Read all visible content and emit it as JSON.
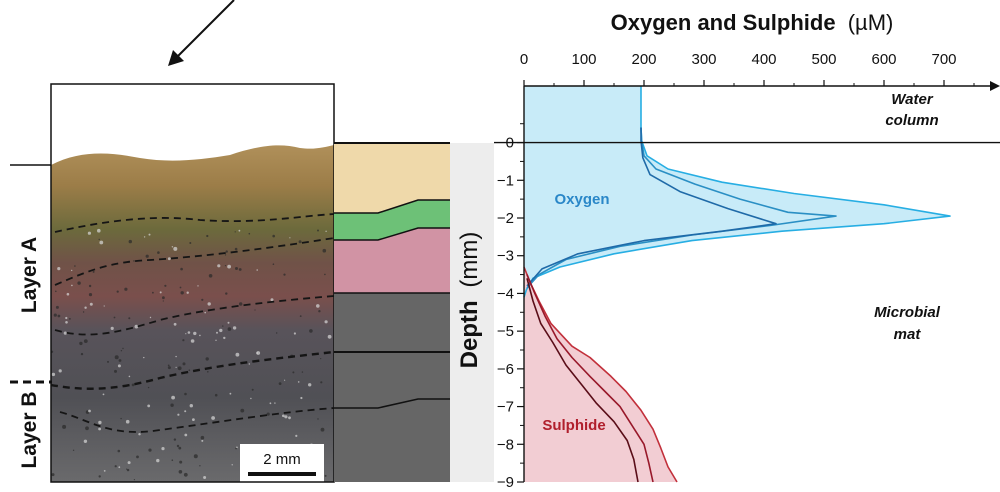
{
  "chart_data": {
    "type": "line",
    "title_bold": "Oxygen and Sulphide",
    "title_unit": "(µM)",
    "x_ticks": [
      "0",
      "100",
      "200",
      "300",
      "400",
      "500",
      "600",
      "700"
    ],
    "xlim": [
      0,
      780
    ],
    "ylim": [
      -9,
      1.5
    ],
    "ylabel_bold": "Depth",
    "ylabel_unit": "(mm)",
    "y_ticks": [
      "0",
      "−1",
      "−2",
      "−3",
      "−4",
      "−5",
      "−6",
      "−7",
      "−8",
      "−9"
    ],
    "y_tick_values": [
      0,
      -1,
      -2,
      -3,
      -4,
      -5,
      -6,
      -7,
      -8,
      -9
    ],
    "colors": {
      "oxygen_fill": "#c8ebf8",
      "oxygen_line_outer": "#27aee3",
      "oxygen_line_mid": "#2a8fc4",
      "oxygen_line_inner": "#1f6aa8",
      "sulphide_fill": "#f2cdd3",
      "sulphide_line_outer": "#c2303b",
      "sulphide_line_mid": "#98182a",
      "sulphide_line_inner": "#5a0d18",
      "oxygen_label": "#2a87c8",
      "sulphide_label": "#b01f2c"
    },
    "series": [
      {
        "name": "Oxygen",
        "group": "oxygen",
        "points": [
          [
            195,
            1.5
          ],
          [
            195,
            0.4
          ],
          [
            196,
            0.05
          ],
          [
            205,
            -0.35
          ],
          [
            240,
            -0.7
          ],
          [
            330,
            -1.05
          ],
          [
            450,
            -1.35
          ],
          [
            600,
            -1.65
          ],
          [
            710,
            -1.95
          ],
          [
            600,
            -2.15
          ],
          [
            430,
            -2.35
          ],
          [
            280,
            -2.6
          ],
          [
            150,
            -2.95
          ],
          [
            60,
            -3.3
          ],
          [
            15,
            -3.6
          ],
          [
            4,
            -3.9
          ],
          [
            0,
            -4.1
          ]
        ]
      },
      {
        "name": "",
        "group": "oxygen",
        "points": [
          [
            195,
            0.4
          ],
          [
            196,
            0.05
          ],
          [
            200,
            -0.35
          ],
          [
            220,
            -0.7
          ],
          [
            285,
            -1.1
          ],
          [
            360,
            -1.5
          ],
          [
            440,
            -1.85
          ],
          [
            520,
            -1.95
          ],
          [
            410,
            -2.2
          ],
          [
            280,
            -2.45
          ],
          [
            160,
            -2.75
          ],
          [
            70,
            -3.1
          ],
          [
            25,
            -3.5
          ],
          [
            5,
            -3.85
          ]
        ]
      },
      {
        "name": "",
        "group": "oxygen",
        "points": [
          [
            195,
            0.4
          ],
          [
            195,
            0.05
          ],
          [
            198,
            -0.4
          ],
          [
            210,
            -0.85
          ],
          [
            260,
            -1.3
          ],
          [
            340,
            -1.75
          ],
          [
            420,
            -2.15
          ],
          [
            330,
            -2.35
          ],
          [
            200,
            -2.6
          ],
          [
            90,
            -2.95
          ],
          [
            30,
            -3.35
          ],
          [
            5,
            -3.8
          ]
        ]
      },
      {
        "name": "Sulphide",
        "group": "sulphide",
        "points": [
          [
            0,
            -3.3
          ],
          [
            10,
            -3.7
          ],
          [
            25,
            -4.2
          ],
          [
            45,
            -4.8
          ],
          [
            80,
            -5.4
          ],
          [
            110,
            -5.7
          ],
          [
            145,
            -6.2
          ],
          [
            170,
            -6.6
          ],
          [
            195,
            -7.1
          ],
          [
            215,
            -7.6
          ],
          [
            228,
            -8.1
          ],
          [
            240,
            -8.6
          ],
          [
            255,
            -9
          ]
        ]
      },
      {
        "name": "",
        "group": "sulphide",
        "points": [
          [
            5,
            -3.5
          ],
          [
            18,
            -4.0
          ],
          [
            35,
            -4.6
          ],
          [
            55,
            -5.2
          ],
          [
            80,
            -5.7
          ],
          [
            110,
            -6.2
          ],
          [
            135,
            -6.6
          ],
          [
            160,
            -7.0
          ],
          [
            180,
            -7.5
          ],
          [
            200,
            -8.0
          ],
          [
            208,
            -8.5
          ],
          [
            215,
            -9
          ]
        ]
      },
      {
        "name": "",
        "group": "sulphide",
        "points": [
          [
            5,
            -3.6
          ],
          [
            15,
            -4.2
          ],
          [
            28,
            -4.8
          ],
          [
            48,
            -5.3
          ],
          [
            70,
            -5.9
          ],
          [
            95,
            -6.4
          ],
          [
            120,
            -6.9
          ],
          [
            150,
            -7.4
          ],
          [
            172,
            -7.9
          ],
          [
            183,
            -8.4
          ],
          [
            190,
            -9
          ]
        ]
      }
    ],
    "annotations": {
      "oxygen": "Oxygen",
      "sulphide": "Sulphide",
      "water_line1": "Water",
      "water_line2": "column",
      "mat_line1": "Microbial",
      "mat_line2": "mat"
    }
  },
  "photo": {
    "layer_a": "Layer A",
    "layer_b": "Layer B",
    "scale_bar": "2 mm"
  }
}
